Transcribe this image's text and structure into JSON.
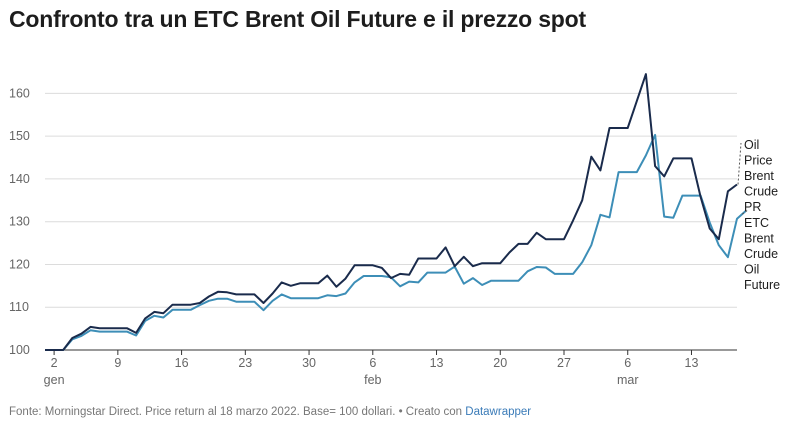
{
  "chart_data": {
    "type": "line",
    "title": "Confronto tra un ETC Brent Oil Future e il prezzo spot",
    "xlabel": "",
    "ylabel": "",
    "ylim": [
      100,
      165
    ],
    "x_range": [
      "2022-01-01",
      "2022-03-18"
    ],
    "y_ticks": [
      100,
      110,
      120,
      130,
      140,
      150,
      160
    ],
    "x_ticks": [
      {
        "date": "2022-01-02",
        "label": "2",
        "month": "gen"
      },
      {
        "date": "2022-01-09",
        "label": "9",
        "month": ""
      },
      {
        "date": "2022-01-16",
        "label": "16",
        "month": ""
      },
      {
        "date": "2022-01-23",
        "label": "23",
        "month": ""
      },
      {
        "date": "2022-01-30",
        "label": "30",
        "month": ""
      },
      {
        "date": "2022-02-06",
        "label": "6",
        "month": "feb"
      },
      {
        "date": "2022-02-13",
        "label": "13",
        "month": ""
      },
      {
        "date": "2022-02-20",
        "label": "20",
        "month": ""
      },
      {
        "date": "2022-02-27",
        "label": "27",
        "month": ""
      },
      {
        "date": "2022-03-06",
        "label": "6",
        "month": "mar"
      },
      {
        "date": "2022-03-13",
        "label": "13",
        "month": ""
      }
    ],
    "grid": true,
    "legend": "right, at line ends",
    "series": [
      {
        "name": "Oil Price Brent Crude PR",
        "label_lines": [
          "Oil",
          "Price",
          "Brent",
          "Crude",
          "PR"
        ],
        "color": "#1a2b4c",
        "points": [
          [
            "2022-01-01",
            100
          ],
          [
            "2022-01-03",
            100
          ],
          [
            "2022-01-04",
            102.8
          ],
          [
            "2022-01-05",
            103.8
          ],
          [
            "2022-01-06",
            105.4
          ],
          [
            "2022-01-07",
            105.1
          ],
          [
            "2022-01-10",
            105.1
          ],
          [
            "2022-01-11",
            104.0
          ],
          [
            "2022-01-12",
            107.4
          ],
          [
            "2022-01-13",
            108.9
          ],
          [
            "2022-01-14",
            108.6
          ],
          [
            "2022-01-15",
            110.6
          ],
          [
            "2022-01-17",
            110.6
          ],
          [
            "2022-01-18",
            111.0
          ],
          [
            "2022-01-19",
            112.5
          ],
          [
            "2022-01-20",
            113.6
          ],
          [
            "2022-01-21",
            113.5
          ],
          [
            "2022-01-22",
            113.0
          ],
          [
            "2022-01-24",
            113.0
          ],
          [
            "2022-01-25",
            111.0
          ],
          [
            "2022-01-26",
            113.2
          ],
          [
            "2022-01-27",
            115.8
          ],
          [
            "2022-01-28",
            115.0
          ],
          [
            "2022-01-29",
            115.6
          ],
          [
            "2022-01-31",
            115.6
          ],
          [
            "2022-02-01",
            117.4
          ],
          [
            "2022-02-02",
            114.8
          ],
          [
            "2022-02-03",
            116.7
          ],
          [
            "2022-02-04",
            119.8
          ],
          [
            "2022-02-06",
            119.8
          ],
          [
            "2022-02-07",
            119.2
          ],
          [
            "2022-02-08",
            116.8
          ],
          [
            "2022-02-09",
            117.8
          ],
          [
            "2022-02-10",
            117.6
          ],
          [
            "2022-02-11",
            121.4
          ],
          [
            "2022-02-13",
            121.4
          ],
          [
            "2022-02-14",
            124.0
          ],
          [
            "2022-02-15",
            119.6
          ],
          [
            "2022-02-16",
            121.8
          ],
          [
            "2022-02-17",
            119.6
          ],
          [
            "2022-02-18",
            120.3
          ],
          [
            "2022-02-20",
            120.3
          ],
          [
            "2022-02-21",
            122.8
          ],
          [
            "2022-02-22",
            124.8
          ],
          [
            "2022-02-23",
            124.8
          ],
          [
            "2022-02-24",
            127.4
          ],
          [
            "2022-02-25",
            125.9
          ],
          [
            "2022-02-27",
            125.9
          ],
          [
            "2022-02-28",
            130.3
          ],
          [
            "2022-03-01",
            135.0
          ],
          [
            "2022-03-02",
            145.2
          ],
          [
            "2022-03-03",
            142.0
          ],
          [
            "2022-03-04",
            151.9
          ],
          [
            "2022-03-06",
            151.9
          ],
          [
            "2022-03-07",
            158.2
          ],
          [
            "2022-03-08",
            164.5
          ],
          [
            "2022-03-09",
            143.0
          ],
          [
            "2022-03-10",
            140.6
          ],
          [
            "2022-03-11",
            144.8
          ],
          [
            "2022-03-13",
            144.8
          ],
          [
            "2022-03-14",
            135.8
          ],
          [
            "2022-03-15",
            128.4
          ],
          [
            "2022-03-16",
            125.9
          ],
          [
            "2022-03-17",
            137.1
          ],
          [
            "2022-03-18",
            138.7
          ]
        ]
      },
      {
        "name": "ETC Brent Crude Oil Future",
        "label_lines": [
          "ETC",
          "Brent",
          "Crude",
          "Oil",
          "Future"
        ],
        "color": "#3d8eb7",
        "points": [
          [
            "2022-01-01",
            100
          ],
          [
            "2022-01-03",
            100
          ],
          [
            "2022-01-04",
            102.5
          ],
          [
            "2022-01-05",
            103.3
          ],
          [
            "2022-01-06",
            104.6
          ],
          [
            "2022-01-07",
            104.3
          ],
          [
            "2022-01-10",
            104.3
          ],
          [
            "2022-01-11",
            103.4
          ],
          [
            "2022-01-12",
            106.8
          ],
          [
            "2022-01-13",
            108.0
          ],
          [
            "2022-01-14",
            107.6
          ],
          [
            "2022-01-15",
            109.4
          ],
          [
            "2022-01-17",
            109.4
          ],
          [
            "2022-01-18",
            110.5
          ],
          [
            "2022-01-19",
            111.5
          ],
          [
            "2022-01-20",
            112.0
          ],
          [
            "2022-01-21",
            112.0
          ],
          [
            "2022-01-22",
            111.3
          ],
          [
            "2022-01-24",
            111.3
          ],
          [
            "2022-01-25",
            109.3
          ],
          [
            "2022-01-26",
            111.5
          ],
          [
            "2022-01-27",
            113.0
          ],
          [
            "2022-01-28",
            112.1
          ],
          [
            "2022-01-29",
            112.1
          ],
          [
            "2022-01-31",
            112.1
          ],
          [
            "2022-02-01",
            112.8
          ],
          [
            "2022-02-02",
            112.6
          ],
          [
            "2022-02-03",
            113.2
          ],
          [
            "2022-02-04",
            115.8
          ],
          [
            "2022-02-05",
            117.3
          ],
          [
            "2022-02-07",
            117.3
          ],
          [
            "2022-02-08",
            117.0
          ],
          [
            "2022-02-09",
            114.9
          ],
          [
            "2022-02-10",
            116.0
          ],
          [
            "2022-02-11",
            115.8
          ],
          [
            "2022-02-12",
            118.1
          ],
          [
            "2022-02-14",
            118.1
          ],
          [
            "2022-02-15",
            119.5
          ],
          [
            "2022-02-16",
            115.5
          ],
          [
            "2022-02-17",
            116.8
          ],
          [
            "2022-02-18",
            115.2
          ],
          [
            "2022-02-19",
            116.2
          ],
          [
            "2022-02-22",
            116.2
          ],
          [
            "2022-02-23",
            118.4
          ],
          [
            "2022-02-24",
            119.4
          ],
          [
            "2022-02-25",
            119.3
          ],
          [
            "2022-02-26",
            117.8
          ],
          [
            "2022-02-28",
            117.8
          ],
          [
            "2022-03-01",
            120.5
          ],
          [
            "2022-03-02",
            124.5
          ],
          [
            "2022-03-03",
            131.6
          ],
          [
            "2022-03-04",
            131.0
          ],
          [
            "2022-03-05",
            141.6
          ],
          [
            "2022-03-07",
            141.6
          ],
          [
            "2022-03-08",
            145.5
          ],
          [
            "2022-03-09",
            150.3
          ],
          [
            "2022-03-10",
            131.2
          ],
          [
            "2022-03-11",
            130.9
          ],
          [
            "2022-03-12",
            136.1
          ],
          [
            "2022-03-14",
            136.1
          ],
          [
            "2022-03-15",
            129.8
          ],
          [
            "2022-03-16",
            124.5
          ],
          [
            "2022-03-17",
            121.7
          ],
          [
            "2022-03-18",
            130.7
          ],
          [
            "2022-03-19",
            132.6
          ]
        ]
      }
    ]
  },
  "footer": {
    "source_text": "Fonte: Morningstar Direct. Price return al 18 marzo 2022. Base= 100 dollari. • Creato con ",
    "tool_link": "Datawrapper"
  }
}
